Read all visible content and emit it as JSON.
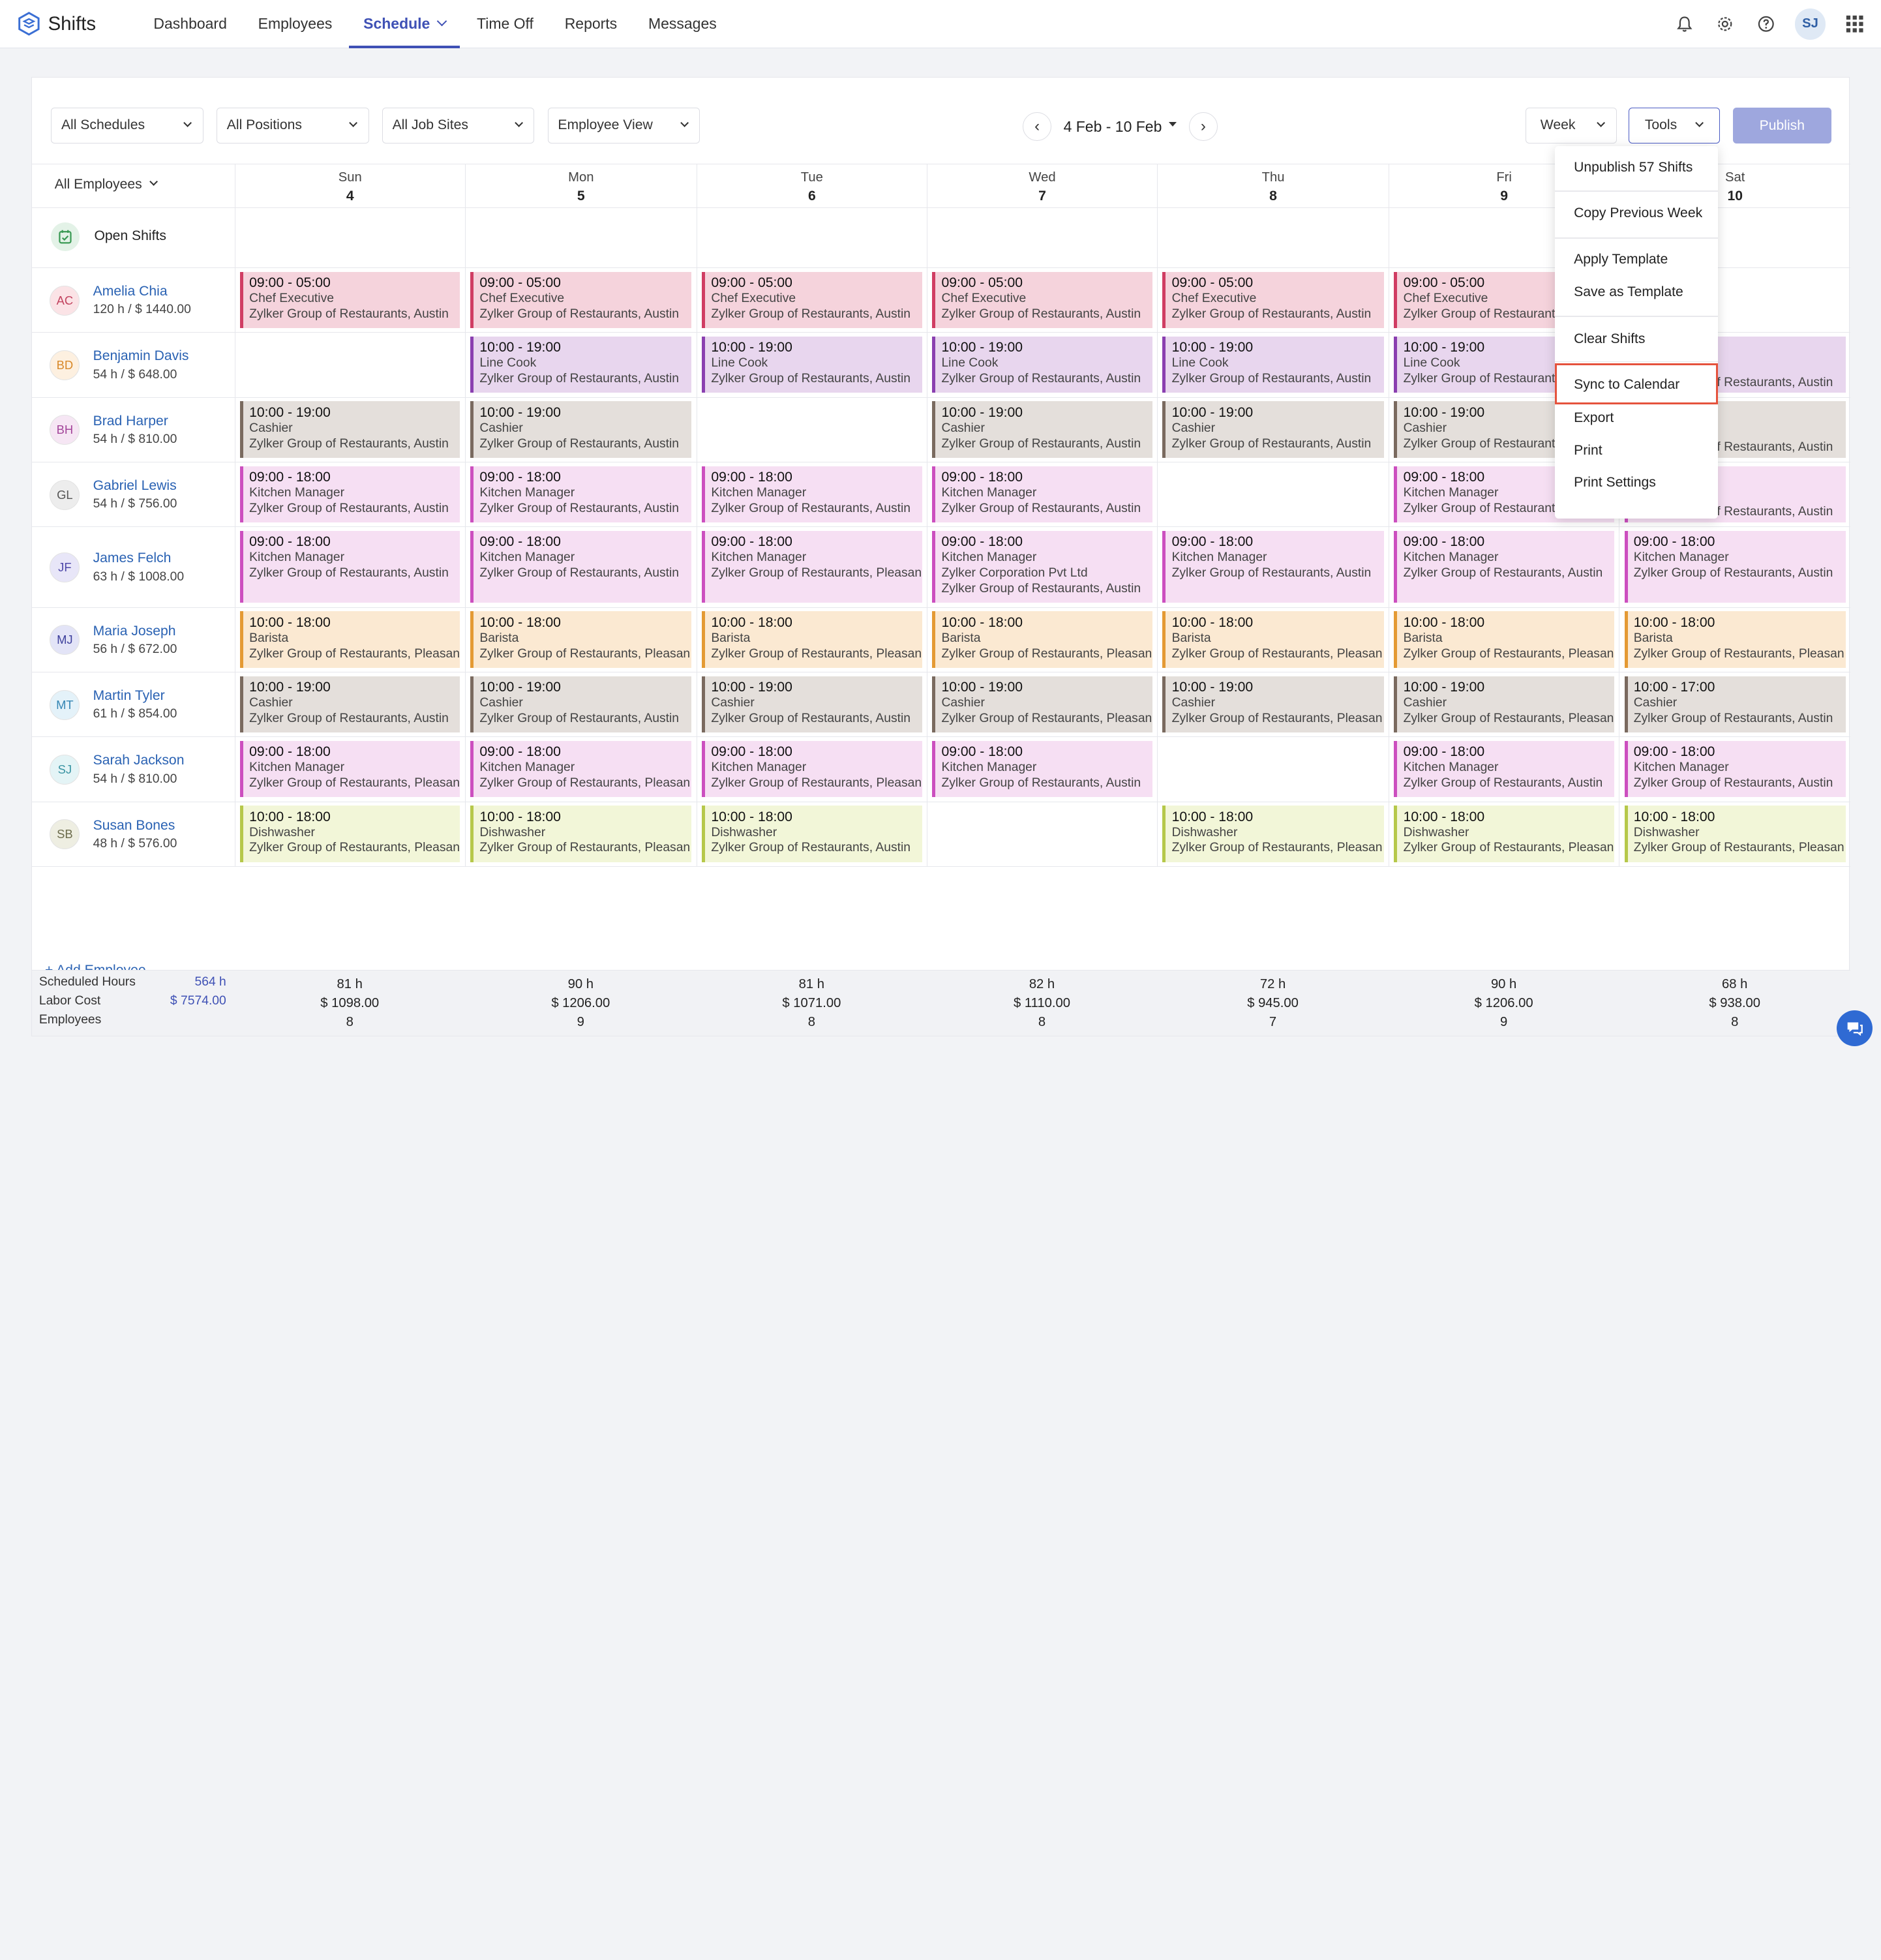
{
  "app": {
    "name": "Shifts"
  },
  "nav": [
    {
      "label": "Dashboard"
    },
    {
      "label": "Employees"
    },
    {
      "label": "Schedule",
      "active": true
    },
    {
      "label": "Time Off"
    },
    {
      "label": "Reports"
    },
    {
      "label": "Messages"
    }
  ],
  "user": {
    "initials": "SJ"
  },
  "filters": {
    "schedules": "All Schedules",
    "positions": "All Positions",
    "job_sites": "All Job Sites",
    "view": "Employee View"
  },
  "date_range": "4 Feb - 10 Feb",
  "period": "Week",
  "tools_label": "Tools",
  "publish_label": "Publish",
  "employee_filter": "All Employees",
  "open_shifts_label": "Open Shifts",
  "days": [
    {
      "name": "Sun",
      "num": "4"
    },
    {
      "name": "Mon",
      "num": "5"
    },
    {
      "name": "Tue",
      "num": "6"
    },
    {
      "name": "Wed",
      "num": "7"
    },
    {
      "name": "Thu",
      "num": "8"
    },
    {
      "name": "Fri",
      "num": "9"
    },
    {
      "name": "Sat",
      "num": "10"
    }
  ],
  "colors": {
    "accent": "#3f51b5",
    "chef": "#f5d3dc",
    "chef_border": "#d03d63",
    "cook": "#e8d6ee",
    "cook_border": "#8a3fb0",
    "cashier": "#e4dfdb",
    "cashier_border": "#7a6a5f",
    "kitchen": "#f6dff3",
    "kitchen_border": "#cc4fbf",
    "barista": "#fbe9d2",
    "barista_border": "#e49a34",
    "dish": "#f2f6d8",
    "dish_border": "#b6c84a"
  },
  "employees": [
    {
      "initials": "AC",
      "name": "Amelia Chia",
      "hours": "120 h / $ 1440.00",
      "avatar_bg": "#fbe3e6",
      "avatar_fg": "#c24460",
      "shifts": [
        {
          "d": 0,
          "time": "09:00 - 05:00",
          "pos": "Chef Executive",
          "loc": "Zylker Group of Restaurants, Austin",
          "c": "chef"
        },
        {
          "d": 1,
          "time": "09:00 - 05:00",
          "pos": "Chef Executive",
          "loc": "Zylker Group of Restaurants, Austin",
          "c": "chef"
        },
        {
          "d": 2,
          "time": "09:00 - 05:00",
          "pos": "Chef Executive",
          "loc": "Zylker Group of Restaurants, Austin",
          "c": "chef"
        },
        {
          "d": 3,
          "time": "09:00 - 05:00",
          "pos": "Chef Executive",
          "loc": "Zylker Group of Restaurants, Austin",
          "c": "chef"
        },
        {
          "d": 4,
          "time": "09:00 - 05:00",
          "pos": "Chef Executive",
          "loc": "Zylker Group of Restaurants, Austin",
          "c": "chef"
        },
        {
          "d": 5,
          "time": "09:00 - 05:00",
          "pos": "Chef Executive",
          "loc": "Zylker Group of Restaurants, Austin",
          "c": "chef"
        }
      ]
    },
    {
      "initials": "BD",
      "name": "Benjamin Davis",
      "hours": "54 h / $ 648.00",
      "avatar_bg": "#fdf0e0",
      "avatar_fg": "#d8892a",
      "shifts": [
        {
          "d": 1,
          "time": "10:00 - 19:00",
          "pos": "Line Cook",
          "loc": "Zylker Group of Restaurants, Austin",
          "c": "cook"
        },
        {
          "d": 2,
          "time": "10:00 - 19:00",
          "pos": "Line Cook",
          "loc": "Zylker Group of Restaurants, Austin",
          "c": "cook"
        },
        {
          "d": 3,
          "time": "10:00 - 19:00",
          "pos": "Line Cook",
          "loc": "Zylker Group of Restaurants, Austin",
          "c": "cook"
        },
        {
          "d": 4,
          "time": "10:00 - 19:00",
          "pos": "Line Cook",
          "loc": "Zylker Group of Restaurants, Austin",
          "c": "cook"
        },
        {
          "d": 5,
          "time": "10:00 - 19:00",
          "pos": "Line Cook",
          "loc": "Zylker Group of Restaurants, Austin",
          "c": "cook"
        },
        {
          "d": 6,
          "time": "",
          "pos": "",
          "loc": "Zylker Group of Restaurants, Austin",
          "c": "cook"
        }
      ]
    },
    {
      "initials": "BH",
      "name": "Brad Harper",
      "hours": "54 h / $ 810.00",
      "avatar_bg": "#f6e6f4",
      "avatar_fg": "#a3459a",
      "shifts": [
        {
          "d": 0,
          "time": "10:00 - 19:00",
          "pos": "Cashier",
          "loc": "Zylker Group of Restaurants, Austin",
          "c": "cashier"
        },
        {
          "d": 1,
          "time": "10:00 - 19:00",
          "pos": "Cashier",
          "loc": "Zylker Group of Restaurants, Austin",
          "c": "cashier"
        },
        {
          "d": 3,
          "time": "10:00 - 19:00",
          "pos": "Cashier",
          "loc": "Zylker Group of Restaurants, Austin",
          "c": "cashier"
        },
        {
          "d": 4,
          "time": "10:00 - 19:00",
          "pos": "Cashier",
          "loc": "Zylker Group of Restaurants, Austin",
          "c": "cashier"
        },
        {
          "d": 5,
          "time": "10:00 - 19:00",
          "pos": "Cashier",
          "loc": "Zylker Group of Restaurants, Austin",
          "c": "cashier"
        },
        {
          "d": 6,
          "time": "",
          "pos": "",
          "loc": "Zylker Group of Restaurants, Austin",
          "c": "cashier"
        }
      ]
    },
    {
      "initials": "GL",
      "name": "Gabriel Lewis",
      "hours": "54 h / $ 756.00",
      "avatar_bg": "#ededed",
      "avatar_fg": "#555",
      "shifts": [
        {
          "d": 0,
          "time": "09:00 - 18:00",
          "pos": "Kitchen Manager",
          "loc": "Zylker Group of Restaurants, Austin",
          "c": "kitchen"
        },
        {
          "d": 1,
          "time": "09:00 - 18:00",
          "pos": "Kitchen Manager",
          "loc": "Zylker Group of Restaurants, Austin",
          "c": "kitchen"
        },
        {
          "d": 2,
          "time": "09:00 - 18:00",
          "pos": "Kitchen Manager",
          "loc": "Zylker Group of Restaurants, Austin",
          "c": "kitchen"
        },
        {
          "d": 3,
          "time": "09:00 - 18:00",
          "pos": "Kitchen Manager",
          "loc": "Zylker Group of Restaurants, Austin",
          "c": "kitchen"
        },
        {
          "d": 5,
          "time": "09:00 - 18:00",
          "pos": "Kitchen Manager",
          "loc": "Zylker Group of Restaurants, Austin",
          "c": "kitchen"
        },
        {
          "d": 6,
          "time": "",
          "pos": "",
          "loc": "Zylker Group of Restaurants, Austin",
          "c": "kitchen"
        }
      ]
    },
    {
      "initials": "JF",
      "name": "James Felch",
      "hours": "63 h / $ 1008.00",
      "avatar_bg": "#e8e6f8",
      "avatar_fg": "#4b45a8",
      "shifts": [
        {
          "d": 0,
          "time": "09:00 - 18:00",
          "pos": "Kitchen Manager",
          "loc": "Zylker Group of Restaurants, Austin",
          "c": "kitchen"
        },
        {
          "d": 1,
          "time": "09:00 - 18:00",
          "pos": "Kitchen Manager",
          "loc": "Zylker Group of Restaurants, Austin",
          "c": "kitchen"
        },
        {
          "d": 2,
          "time": "09:00 - 18:00",
          "pos": "Kitchen Manager",
          "loc": "Zylker Group of Restaurants, Pleasan",
          "c": "kitchen"
        },
        {
          "d": 3,
          "time": "09:00 - 18:00",
          "pos": "Kitchen Manager",
          "loc": "Zylker Corporation Pvt Ltd",
          "loc2": "Zylker Group of Restaurants, Austin",
          "c": "kitchen"
        },
        {
          "d": 4,
          "time": "09:00 - 18:00",
          "pos": "Kitchen Manager",
          "loc": "Zylker Group of Restaurants, Austin",
          "c": "kitchen"
        },
        {
          "d": 5,
          "time": "09:00 - 18:00",
          "pos": "Kitchen Manager",
          "loc": "Zylker Group of Restaurants, Austin",
          "c": "kitchen"
        },
        {
          "d": 6,
          "time": "09:00 - 18:00",
          "pos": "Kitchen Manager",
          "loc": "Zylker Group of Restaurants, Austin",
          "c": "kitchen"
        }
      ]
    },
    {
      "initials": "MJ",
      "name": "Maria Joseph",
      "hours": "56 h / $ 672.00",
      "avatar_bg": "#e3e4f7",
      "avatar_fg": "#3d3f9c",
      "shifts": [
        {
          "d": 0,
          "time": "10:00 - 18:00",
          "pos": "Barista",
          "loc": "Zylker Group of Restaurants, Pleasan",
          "c": "barista"
        },
        {
          "d": 1,
          "time": "10:00 - 18:00",
          "pos": "Barista",
          "loc": "Zylker Group of Restaurants, Pleasan",
          "c": "barista"
        },
        {
          "d": 2,
          "time": "10:00 - 18:00",
          "pos": "Barista",
          "loc": "Zylker Group of Restaurants, Pleasan",
          "c": "barista"
        },
        {
          "d": 3,
          "time": "10:00 - 18:00",
          "pos": "Barista",
          "loc": "Zylker Group of Restaurants, Pleasan",
          "c": "barista"
        },
        {
          "d": 4,
          "time": "10:00 - 18:00",
          "pos": "Barista",
          "loc": "Zylker Group of Restaurants, Pleasan",
          "c": "barista"
        },
        {
          "d": 5,
          "time": "10:00 - 18:00",
          "pos": "Barista",
          "loc": "Zylker Group of Restaurants, Pleasan",
          "c": "barista"
        },
        {
          "d": 6,
          "time": "10:00 - 18:00",
          "pos": "Barista",
          "loc": "Zylker Group of Restaurants, Pleasan",
          "c": "barista"
        }
      ]
    },
    {
      "initials": "MT",
      "name": "Martin Tyler",
      "hours": "61 h / $ 854.00",
      "avatar_bg": "#e4f2f9",
      "avatar_fg": "#3486b4",
      "shifts": [
        {
          "d": 0,
          "time": "10:00 - 19:00",
          "pos": "Cashier",
          "loc": "Zylker Group of Restaurants, Austin",
          "c": "cashier"
        },
        {
          "d": 1,
          "time": "10:00 - 19:00",
          "pos": "Cashier",
          "loc": "Zylker Group of Restaurants, Austin",
          "c": "cashier"
        },
        {
          "d": 2,
          "time": "10:00 - 19:00",
          "pos": "Cashier",
          "loc": "Zylker Group of Restaurants, Austin",
          "c": "cashier"
        },
        {
          "d": 3,
          "time": "10:00 - 19:00",
          "pos": "Cashier",
          "loc": "Zylker Group of Restaurants, Pleasan",
          "c": "cashier"
        },
        {
          "d": 4,
          "time": "10:00 - 19:00",
          "pos": "Cashier",
          "loc": "Zylker Group of Restaurants, Pleasan",
          "c": "cashier"
        },
        {
          "d": 5,
          "time": "10:00 - 19:00",
          "pos": "Cashier",
          "loc": "Zylker Group of Restaurants, Pleasan",
          "c": "cashier"
        },
        {
          "d": 6,
          "time": "10:00 - 17:00",
          "pos": "Cashier",
          "loc": "Zylker Group of Restaurants, Austin",
          "c": "cashier"
        }
      ]
    },
    {
      "initials": "SJ",
      "name": "Sarah Jackson",
      "hours": "54 h / $ 810.00",
      "avatar_bg": "#e4f4f6",
      "avatar_fg": "#3a94a3",
      "shifts": [
        {
          "d": 0,
          "time": "09:00 - 18:00",
          "pos": "Kitchen Manager",
          "loc": "Zylker Group of Restaurants, Pleasan",
          "c": "kitchen"
        },
        {
          "d": 1,
          "time": "09:00 - 18:00",
          "pos": "Kitchen Manager",
          "loc": "Zylker Group of Restaurants, Pleasan",
          "c": "kitchen"
        },
        {
          "d": 2,
          "time": "09:00 - 18:00",
          "pos": "Kitchen Manager",
          "loc": "Zylker Group of Restaurants, Pleasan",
          "c": "kitchen"
        },
        {
          "d": 3,
          "time": "09:00 - 18:00",
          "pos": "Kitchen Manager",
          "loc": "Zylker Group of Restaurants, Austin",
          "c": "kitchen"
        },
        {
          "d": 5,
          "time": "09:00 - 18:00",
          "pos": "Kitchen Manager",
          "loc": "Zylker Group of Restaurants, Austin",
          "c": "kitchen"
        },
        {
          "d": 6,
          "time": "09:00 - 18:00",
          "pos": "Kitchen Manager",
          "loc": "Zylker Group of Restaurants, Austin",
          "c": "kitchen"
        }
      ]
    },
    {
      "initials": "SB",
      "name": "Susan Bones",
      "hours": "48 h / $ 576.00",
      "avatar_bg": "#eeeee2",
      "avatar_fg": "#6b6b4b",
      "shifts": [
        {
          "d": 0,
          "time": "10:00 - 18:00",
          "pos": "Dishwasher",
          "loc": "Zylker Group of Restaurants, Pleasan",
          "c": "dish"
        },
        {
          "d": 1,
          "time": "10:00 - 18:00",
          "pos": "Dishwasher",
          "loc": "Zylker Group of Restaurants, Pleasan",
          "c": "dish"
        },
        {
          "d": 2,
          "time": "10:00 - 18:00",
          "pos": "Dishwasher",
          "loc": "Zylker Group of Restaurants, Austin",
          "c": "dish"
        },
        {
          "d": 4,
          "time": "10:00 - 18:00",
          "pos": "Dishwasher",
          "loc": "Zylker Group of Restaurants, Pleasan",
          "c": "dish"
        },
        {
          "d": 5,
          "time": "10:00 - 18:00",
          "pos": "Dishwasher",
          "loc": "Zylker Group of Restaurants, Pleasan",
          "c": "dish"
        },
        {
          "d": 6,
          "time": "10:00 - 18:00",
          "pos": "Dishwasher",
          "loc": "Zylker Group of Restaurants, Pleasan",
          "c": "dish"
        }
      ]
    }
  ],
  "add_employee": "+ Add Employee",
  "summary": {
    "labels": {
      "hours": "Scheduled Hours",
      "cost": "Labor Cost",
      "employees": "Employees"
    },
    "totals": {
      "hours": "564 h",
      "cost": "$ 7574.00"
    },
    "days": [
      {
        "hours": "81 h",
        "cost": "$ 1098.00",
        "emp": "8"
      },
      {
        "hours": "90 h",
        "cost": "$ 1206.00",
        "emp": "9"
      },
      {
        "hours": "81 h",
        "cost": "$ 1071.00",
        "emp": "8"
      },
      {
        "hours": "82 h",
        "cost": "$ 1110.00",
        "emp": "8"
      },
      {
        "hours": "72 h",
        "cost": "$ 945.00",
        "emp": "7"
      },
      {
        "hours": "90 h",
        "cost": "$ 1206.00",
        "emp": "9"
      },
      {
        "hours": "68 h",
        "cost": "$ 938.00",
        "emp": "8"
      }
    ]
  },
  "tools_menu": {
    "items": [
      "Unpublish 57 Shifts",
      "Copy Previous Week",
      "Apply Template",
      "Save as Template",
      "Clear Shifts",
      "Sync to Calendar",
      "Export",
      "Print",
      "Print Settings"
    ],
    "highlighted": "Sync to Calendar"
  }
}
